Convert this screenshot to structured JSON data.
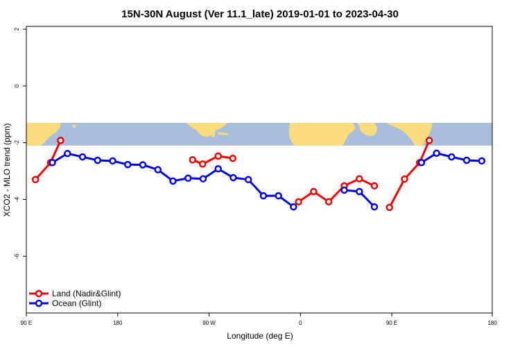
{
  "chart_data": {
    "type": "line",
    "title": "15N-30N August (Ver 11.1_late)   2019-01-01 to 2023-04-30",
    "xlabel": "Longitude (deg E)",
    "ylabel": "XCO2 - MLO trend (ppm)",
    "xlim": [
      90,
      600
    ],
    "ylim": [
      -8,
      2.1
    ],
    "x_ticks": [
      {
        "value": 90,
        "label": "90 E"
      },
      {
        "value": 190,
        "label": "180"
      },
      {
        "value": 290,
        "label": "90 W"
      },
      {
        "value": 390,
        "label": "0"
      },
      {
        "value": 490,
        "label": "90 E"
      },
      {
        "value": 600,
        "label": "180"
      }
    ],
    "y_ticks": [
      {
        "value": 2,
        "label": "2"
      },
      {
        "value": 0,
        "label": "0"
      },
      {
        "value": -2,
        "label": "-2"
      },
      {
        "value": -4,
        "label": "-4"
      },
      {
        "value": -6,
        "label": "-6"
      }
    ],
    "grid": false,
    "legend_position": "bottom-left",
    "background_map_band": {
      "y_from": -2.1,
      "y_to": -1.3,
      "ocean_color": "#a6bddb",
      "land_color": "#fddc7d"
    },
    "series": [
      {
        "name": "Land (Nadir&Glint)",
        "color": "#ee0000",
        "segments": [
          [
            [
              100,
              -3.3
            ],
            [
              116.5,
              -2.7
            ],
            [
              127.5,
              -1.92
            ]
          ],
          [
            [
              272,
              -2.6
            ],
            [
              283,
              -2.75
            ],
            [
              300,
              -2.47
            ],
            [
              316,
              -2.55
            ]
          ],
          [
            [
              388,
              -4.08
            ],
            [
              404.5,
              -3.72
            ],
            [
              421,
              -4.08
            ],
            [
              438,
              -3.52
            ],
            [
              454.5,
              -3.27
            ],
            [
              471,
              -3.52
            ]
          ],
          [
            [
              487.5,
              -4.28
            ],
            [
              504,
              -3.28
            ],
            [
              520.5,
              -2.7
            ],
            [
              531,
              -1.92
            ]
          ]
        ]
      },
      {
        "name": "Ocean (Glint)",
        "color": "#0000dd",
        "segments": [
          [
            [
              118.5,
              -2.7
            ],
            [
              135,
              -2.38
            ],
            [
              151.5,
              -2.5
            ],
            [
              168,
              -2.62
            ],
            [
              184.5,
              -2.64
            ],
            [
              201,
              -2.77
            ],
            [
              217.5,
              -2.78
            ],
            [
              234,
              -2.95
            ],
            [
              250.5,
              -3.35
            ],
            [
              267,
              -3.25
            ],
            [
              283.5,
              -3.27
            ],
            [
              300,
              -2.92
            ],
            [
              316.5,
              -3.23
            ],
            [
              333,
              -3.3
            ],
            [
              349.5,
              -3.87
            ],
            [
              366,
              -3.87
            ],
            [
              382.5,
              -4.26
            ]
          ],
          [
            [
              438,
              -3.67
            ],
            [
              454.5,
              -3.72
            ],
            [
              471,
              -4.26
            ]
          ],
          [
            [
              522.5,
              -2.7
            ],
            [
              539,
              -2.37
            ],
            [
              555.5,
              -2.5
            ],
            [
              572,
              -2.62
            ],
            [
              588.5,
              -2.64
            ]
          ]
        ]
      }
    ]
  }
}
